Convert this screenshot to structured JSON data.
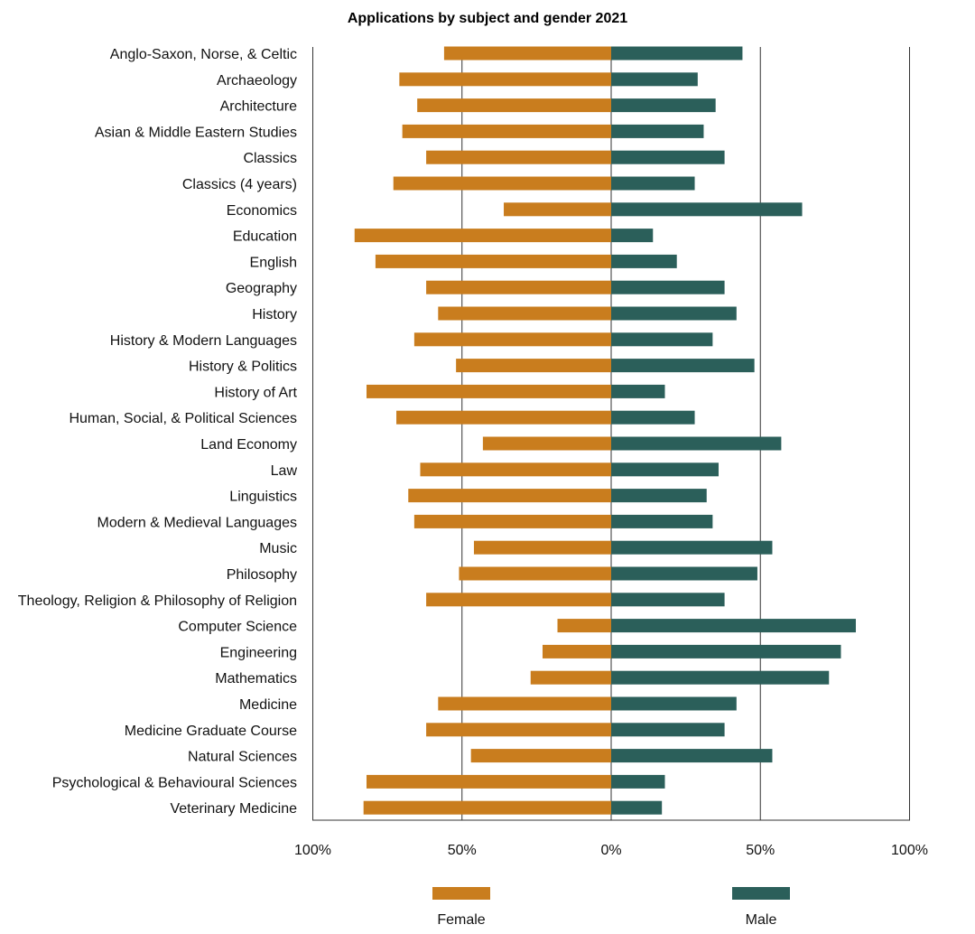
{
  "chart_data": {
    "type": "bar",
    "orientation": "horizontal-diverging",
    "title": "Applications by subject and gender 2021",
    "xlabel": "",
    "ylabel": "",
    "xlim": [
      -100,
      100
    ],
    "x_ticks": [
      "100%",
      "50%",
      "0%",
      "50%",
      "100%"
    ],
    "grid": true,
    "legend_position": "bottom",
    "categories": [
      "Anglo-Saxon, Norse, & Celtic",
      "Archaeology",
      "Architecture",
      "Asian & Middle Eastern Studies",
      "Classics",
      "Classics (4 years)",
      "Economics",
      "Education",
      "English",
      "Geography",
      "History",
      "History & Modern Languages",
      "History & Politics",
      "History of Art",
      "Human, Social, & Political Sciences",
      "Land Economy",
      "Law",
      "Linguistics",
      "Modern & Medieval Languages",
      "Music",
      "Philosophy",
      "Theology, Religion & Philosophy of Religion",
      "Computer Science",
      "Engineering",
      "Mathematics",
      "Medicine",
      "Medicine Graduate Course",
      "Natural Sciences",
      "Psychological & Behavioural Sciences",
      "Veterinary Medicine"
    ],
    "series": [
      {
        "name": "Female",
        "color": "#C97D1E",
        "values": [
          56,
          71,
          65,
          70,
          62,
          73,
          36,
          86,
          79,
          62,
          58,
          66,
          52,
          82,
          72,
          43,
          64,
          68,
          66,
          46,
          51,
          62,
          18,
          23,
          27,
          58,
          62,
          47,
          82,
          83
        ]
      },
      {
        "name": "Male",
        "color": "#2B5F5A",
        "values": [
          44,
          29,
          35,
          31,
          38,
          28,
          64,
          14,
          22,
          38,
          42,
          34,
          48,
          18,
          28,
          57,
          36,
          32,
          34,
          54,
          49,
          38,
          82,
          77,
          73,
          42,
          38,
          54,
          18,
          17
        ]
      }
    ]
  }
}
